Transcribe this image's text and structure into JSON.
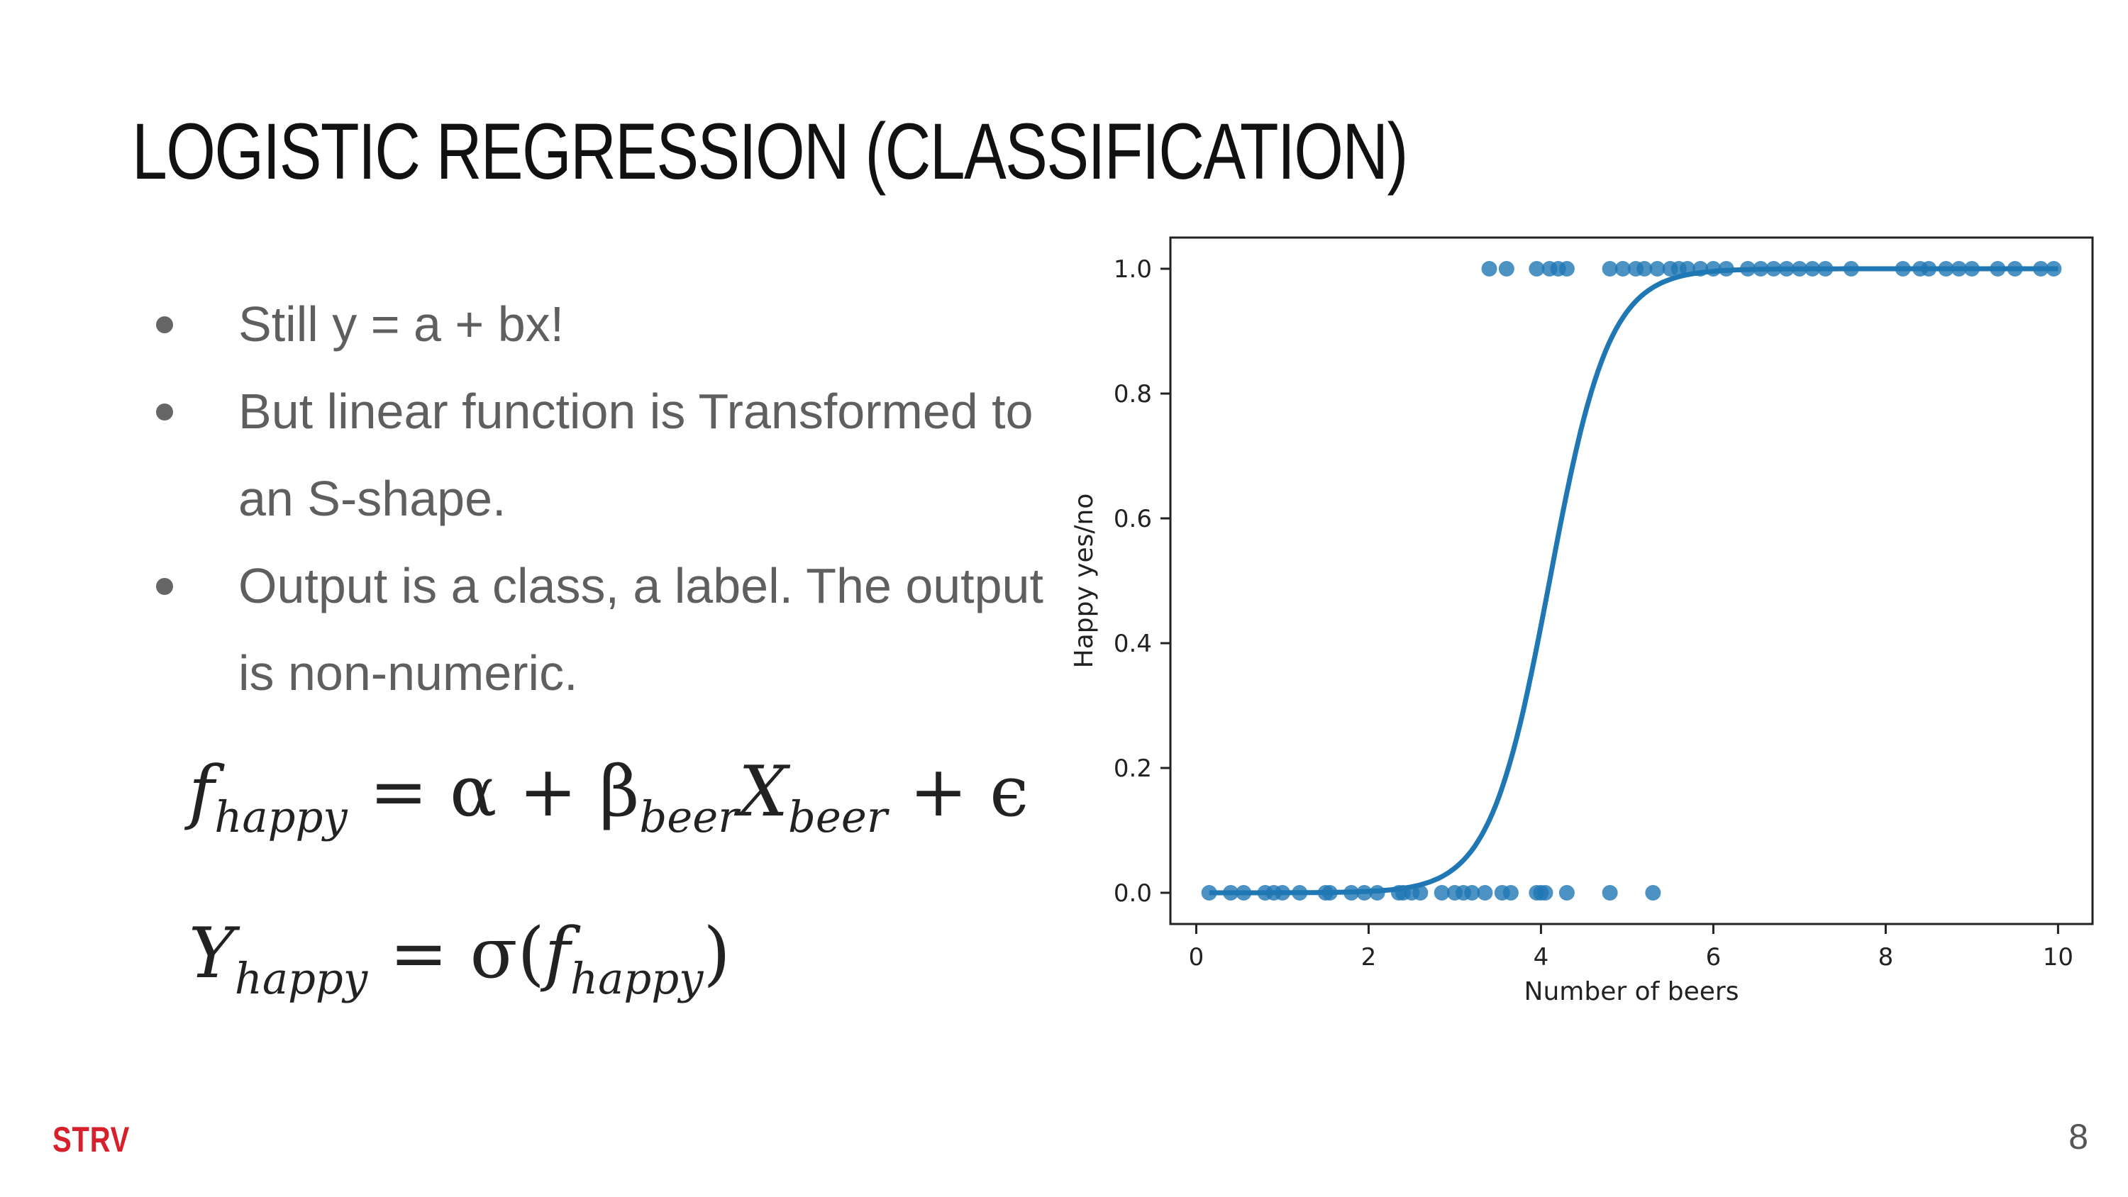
{
  "slide": {
    "title": "LOGISTIC REGRESSION (CLASSIFICATION)",
    "bullets": [
      "Still y = a + bx!",
      "But linear function is Transformed to an S-shape.",
      "Output is a class, a label. The output is non-numeric."
    ],
    "formulas": {
      "f_main": "f",
      "f_sub": "happy",
      "eq1_mid": " = α + β",
      "beta_sub": "beer",
      "x_main": "X",
      "x_sub": "beer",
      "eq1_end": " + ϵ",
      "y_main": "Y",
      "y_sub": "happy",
      "eq2_mid": " = σ(",
      "f2_main": "f",
      "f2_sub": "happy",
      "eq2_end": ")"
    },
    "brand": "STRV",
    "page_number": "8"
  },
  "chart_data": {
    "type": "scatter",
    "title": "",
    "xlabel": "Number of beers",
    "ylabel": "Happy yes/no",
    "xlim": [
      -0.3,
      10.4
    ],
    "ylim": [
      -0.05,
      1.05
    ],
    "xticks": [
      0,
      2,
      4,
      6,
      8,
      10
    ],
    "yticks": [
      0.0,
      0.2,
      0.4,
      0.6,
      0.8,
      1.0
    ],
    "grid": false,
    "color": "#1f77b4",
    "points": {
      "y0_x": [
        0.15,
        0.4,
        0.55,
        0.8,
        0.9,
        1.0,
        1.2,
        1.5,
        1.55,
        1.8,
        1.95,
        2.1,
        2.35,
        2.4,
        2.5,
        2.6,
        2.85,
        3.0,
        3.1,
        3.2,
        3.35,
        3.55,
        3.65,
        3.95,
        4.0,
        4.05,
        4.3,
        4.8,
        5.3
      ],
      "y1_x": [
        3.4,
        3.6,
        3.95,
        4.1,
        4.2,
        4.3,
        4.8,
        4.95,
        5.1,
        5.2,
        5.35,
        5.5,
        5.6,
        5.7,
        5.85,
        6.0,
        6.15,
        6.4,
        6.55,
        6.7,
        6.85,
        7.0,
        7.15,
        7.3,
        7.6,
        8.2,
        8.4,
        8.5,
        8.7,
        8.85,
        9.0,
        9.3,
        9.5,
        9.8,
        9.95
      ]
    },
    "curve": {
      "kind": "logistic",
      "midpoint": 4.1,
      "steepness": 2.9,
      "x_range": [
        0.15,
        10.0
      ]
    }
  }
}
